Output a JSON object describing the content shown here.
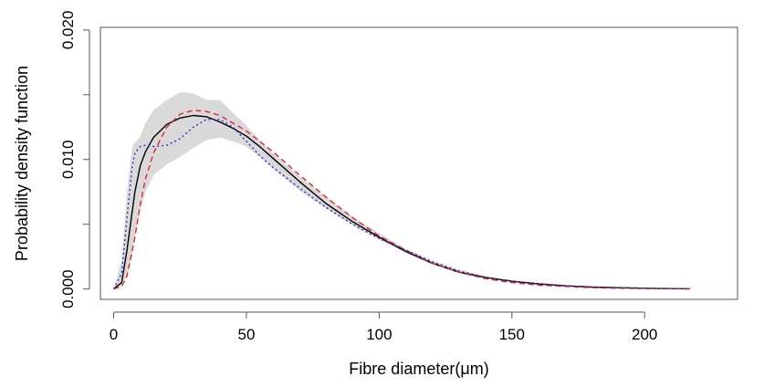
{
  "chart_data": {
    "type": "line",
    "xlabel": "Fibre diameter(μm)",
    "ylabel": "Probability density function",
    "xlim": [
      -5,
      235
    ],
    "ylim": [
      -0.0008,
      0.0202
    ],
    "x_ticks": [
      0,
      50,
      100,
      150,
      200
    ],
    "x_tick_labels": [
      "0",
      "50",
      "100",
      "150",
      "200"
    ],
    "y_ticks": [
      0.0,
      0.005,
      0.01,
      0.015,
      0.02
    ],
    "y_tick_labels": [
      "0.000",
      "",
      "0.010",
      "",
      "0.020"
    ],
    "grid": false,
    "legend": "none",
    "band": {
      "color": "#d9d9d9",
      "x": [
        0,
        3,
        5,
        7,
        8,
        10,
        12,
        15,
        20,
        25,
        30,
        35,
        40,
        45,
        50,
        55,
        60,
        70,
        80,
        90,
        100,
        110,
        120,
        130,
        140,
        150,
        160,
        170,
        180,
        190,
        200,
        210,
        220,
        230
      ],
      "upper": [
        0,
        0.0022,
        0.0075,
        0.011,
        0.0113,
        0.0118,
        0.0128,
        0.0138,
        0.0146,
        0.0152,
        0.0151,
        0.0146,
        0.0146,
        0.0136,
        0.0126,
        0.0115,
        0.0105,
        0.0087,
        0.0071,
        0.0056,
        0.0043,
        0.0031,
        0.0022,
        0.0015,
        0.001,
        0.0006,
        0.0004,
        0.00025,
        0.00015,
        0.0001,
        6e-05,
        4e-05,
        2e-05,
        1e-05
      ],
      "lower": [
        0,
        0.0002,
        0.001,
        0.0025,
        0.004,
        0.006,
        0.0075,
        0.0088,
        0.0096,
        0.0102,
        0.0109,
        0.0115,
        0.0117,
        0.0114,
        0.011,
        0.0102,
        0.0093,
        0.0076,
        0.0062,
        0.0049,
        0.0038,
        0.0028,
        0.0019,
        0.0013,
        0.0008,
        0.0005,
        0.0003,
        0.0002,
        0.0001,
        5e-05,
        3e-05,
        2e-05,
        1e-05,
        0
      ]
    },
    "series": [
      {
        "color": "#000000",
        "dash": "solid",
        "x": [
          0,
          3,
          5,
          8,
          10,
          12,
          15,
          20,
          25,
          30,
          35,
          40,
          45,
          50,
          55,
          60,
          70,
          80,
          90,
          100,
          110,
          120,
          130,
          140,
          150,
          160,
          170,
          180,
          190,
          200,
          210,
          217
        ],
        "y": [
          0,
          0.0005,
          0.003,
          0.0075,
          0.0095,
          0.0106,
          0.0117,
          0.0127,
          0.0132,
          0.0134,
          0.0133,
          0.0129,
          0.0124,
          0.0118,
          0.011,
          0.0101,
          0.0083,
          0.0066,
          0.0052,
          0.004,
          0.0029,
          0.002,
          0.0013,
          0.0009,
          0.0006,
          0.0004,
          0.00025,
          0.00015,
          0.0001,
          6e-05,
          3e-05,
          2e-05
        ]
      },
      {
        "color": "#e8262a",
        "dash": "dashed",
        "x": [
          0,
          3,
          5,
          8,
          10,
          12,
          15,
          20,
          25,
          30,
          35,
          40,
          45,
          50,
          55,
          60,
          70,
          80,
          90,
          100,
          110,
          120,
          130,
          140,
          150,
          160,
          170,
          180,
          190,
          200,
          210,
          217
        ],
        "y": [
          0,
          0.0002,
          0.001,
          0.004,
          0.0065,
          0.0085,
          0.0105,
          0.0125,
          0.0135,
          0.0138,
          0.0137,
          0.0134,
          0.0128,
          0.0122,
          0.0114,
          0.0106,
          0.0088,
          0.0071,
          0.0055,
          0.0041,
          0.003,
          0.002,
          0.0013,
          0.0008,
          0.0005,
          0.0003,
          0.0002,
          0.0001,
          6e-05,
          4e-05,
          2e-05,
          1e-05
        ]
      },
      {
        "color": "#2233cc",
        "dash": "dotted",
        "x": [
          0,
          3,
          5,
          7,
          8,
          10,
          12,
          15,
          20,
          25,
          30,
          35,
          40,
          45,
          50,
          55,
          60,
          70,
          80,
          90,
          100,
          110,
          120,
          130,
          140,
          150,
          160,
          170,
          180,
          190,
          200,
          210,
          217
        ],
        "y": [
          0,
          0.0012,
          0.0055,
          0.0095,
          0.0105,
          0.011,
          0.0111,
          0.011,
          0.0111,
          0.0116,
          0.0125,
          0.0131,
          0.0131,
          0.0125,
          0.0114,
          0.0103,
          0.0094,
          0.0078,
          0.0063,
          0.005,
          0.0039,
          0.003,
          0.0021,
          0.0014,
          0.0009,
          0.0006,
          0.0004,
          0.00025,
          0.00015,
          0.0001,
          6e-05,
          3e-05,
          2e-05
        ]
      }
    ]
  }
}
